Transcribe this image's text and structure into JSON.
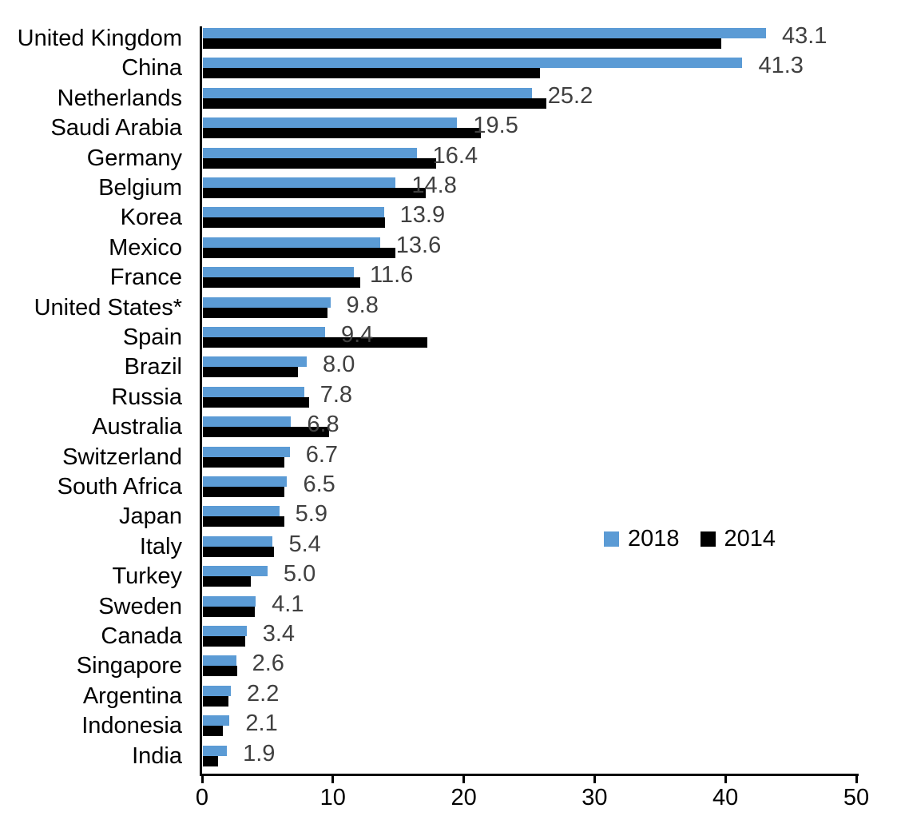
{
  "chart_data": {
    "type": "bar",
    "orientation": "horizontal",
    "title": "",
    "xlabel": "",
    "ylabel": "",
    "xlim": [
      0,
      50
    ],
    "x_ticks": [
      "0",
      "10",
      "20",
      "30",
      "40",
      "50"
    ],
    "grid": false,
    "categories": [
      "United Kingdom",
      "China",
      "Netherlands",
      "Saudi Arabia",
      "Germany",
      "Belgium",
      "Korea",
      "Mexico",
      "France",
      "United States*",
      "Spain",
      "Brazil",
      "Russia",
      "Australia",
      "Switzerland",
      "South Africa",
      "Japan",
      "Italy",
      "Turkey",
      "Sweden",
      "Canada",
      "Singapore",
      "Argentina",
      "Indonesia",
      "India"
    ],
    "series": [
      {
        "name": "2018",
        "color": "#5B9BD5",
        "values": [
          43.1,
          41.3,
          25.2,
          19.5,
          16.4,
          14.8,
          13.9,
          13.6,
          11.6,
          9.8,
          9.4,
          8.0,
          7.8,
          6.8,
          6.7,
          6.5,
          5.9,
          5.4,
          5.0,
          4.1,
          3.4,
          2.6,
          2.2,
          2.1,
          1.9
        ]
      },
      {
        "name": "2014",
        "color": "#000000",
        "values": [
          39.7,
          25.8,
          26.3,
          21.3,
          17.9,
          17.1,
          14.0,
          14.8,
          12.1,
          9.6,
          17.2,
          7.3,
          8.2,
          9.7,
          6.3,
          6.3,
          6.3,
          5.5,
          3.7,
          4.0,
          3.3,
          2.7,
          2.0,
          1.6,
          1.2
        ]
      }
    ],
    "data_labels": {
      "labeled_series": "2018",
      "values": [
        "43.1",
        "41.3",
        "25.2",
        "19.5",
        "16.4",
        "14.8",
        "13.9",
        "13.6",
        "11.6",
        "9.8",
        "9.4",
        "8.0",
        "7.8",
        "6.8",
        "6.7",
        "6.5",
        "5.9",
        "5.4",
        "5.0",
        "4.1",
        "3.4",
        "2.6",
        "2.2",
        "2.1",
        "1.9"
      ],
      "color": "#404040"
    },
    "legend": {
      "position": "middle-right",
      "entries": [
        {
          "label": "2018",
          "color": "#5B9BD5"
        },
        {
          "label": "2014",
          "color": "#000000"
        }
      ]
    },
    "axis_color": "#000000"
  }
}
